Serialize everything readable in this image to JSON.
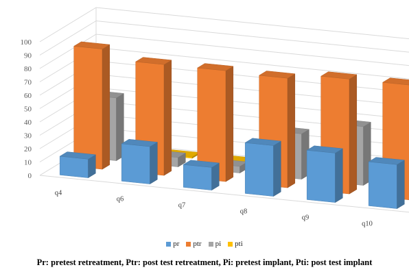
{
  "chart_data": {
    "type": "bar",
    "subtype": "3d-column",
    "categories": [
      "q4",
      "q6",
      "q7",
      "q8",
      "q9",
      "q10"
    ],
    "depth_labels_visible": [
      "pi",
      "pr"
    ],
    "series": [
      {
        "name": "pr",
        "color": "#5B9BD5",
        "values": [
          14,
          28,
          17,
          38,
          37,
          33
        ]
      },
      {
        "name": "ptr",
        "color": "#ED7D31",
        "values": [
          90,
          83,
          83,
          82,
          86,
          86
        ]
      },
      {
        "name": "pi",
        "color": "#A5A5A5",
        "values": [
          47,
          7,
          5,
          34,
          44,
          11
        ]
      },
      {
        "name": "pti",
        "color": "#FFC000",
        "values": [
          3,
          1,
          1,
          1,
          6,
          5
        ]
      }
    ],
    "yticks": [
      0,
      10,
      20,
      30,
      40,
      50,
      60,
      70,
      80,
      90,
      100
    ],
    "ylim": [
      0,
      100
    ],
    "grid": true,
    "legend_position": "bottom"
  },
  "caption": "Pr: pretest retreatment, Ptr: post test retreatment, Pi: pretest implant, Pti: post test implant"
}
